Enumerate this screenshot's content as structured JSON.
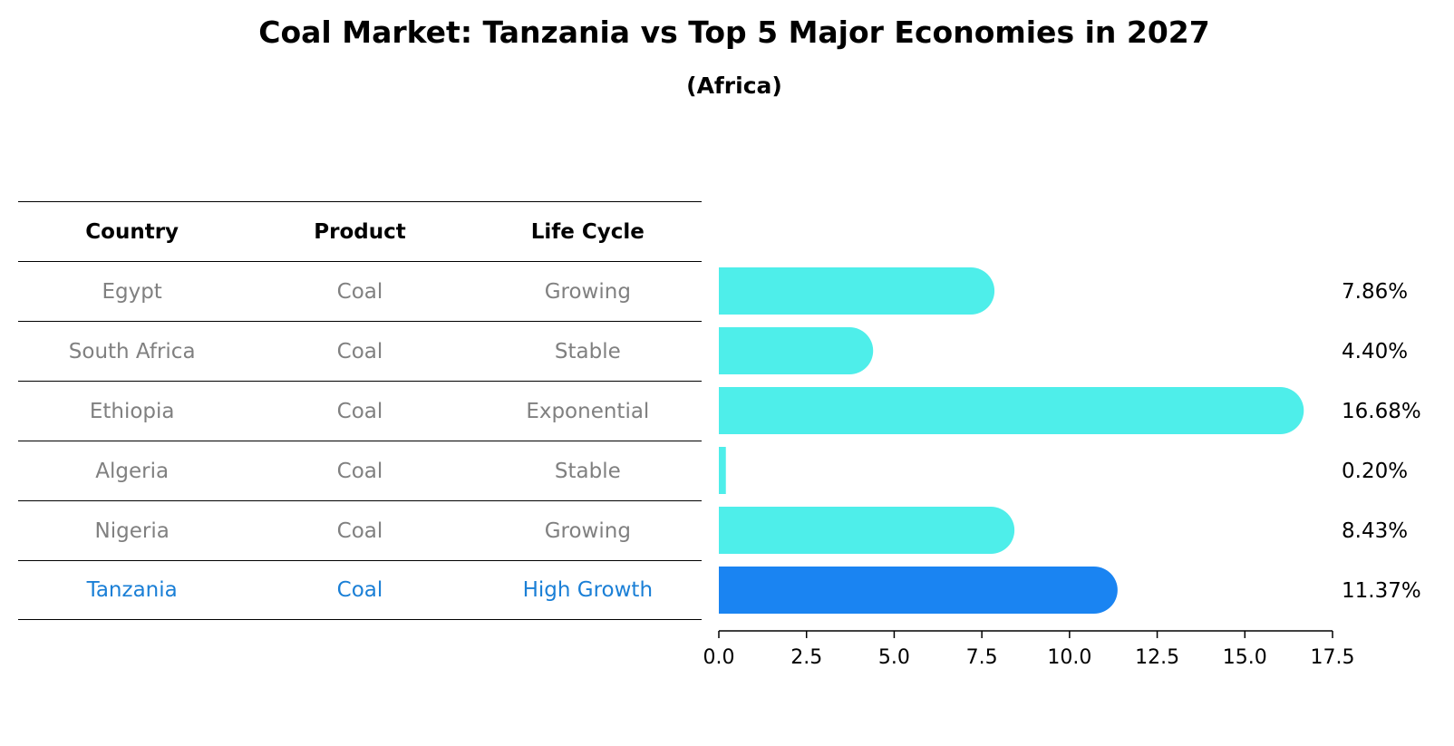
{
  "chart_data": {
    "type": "bar",
    "orientation": "horizontal",
    "title": "Coal Market: Tanzania vs Top 5 Major Economies in 2027",
    "subtitle": "(Africa)",
    "xlim": [
      0,
      17.5
    ],
    "xticks": [
      "0.0",
      "2.5",
      "5.0",
      "7.5",
      "10.0",
      "12.5",
      "15.0",
      "17.5"
    ],
    "categories": [
      "Egypt",
      "South Africa",
      "Ethiopia",
      "Algeria",
      "Nigeria",
      "Tanzania"
    ],
    "values": [
      7.86,
      4.4,
      16.68,
      0.2,
      8.43,
      11.37
    ],
    "value_labels": [
      "7.86%",
      "4.40%",
      "16.68%",
      "0.20%",
      "8.43%",
      "11.37%"
    ],
    "highlight": "Tanzania",
    "colors": {
      "bar": "#4eeeea",
      "highlight_bar": "#1a84f2",
      "highlight_text": "#1a7fd6",
      "row_text": "#808080"
    }
  },
  "table": {
    "headers": [
      "Country",
      "Product",
      "Life Cycle"
    ],
    "rows": [
      [
        "Egypt",
        "Coal",
        "Growing"
      ],
      [
        "South Africa",
        "Coal",
        "Stable"
      ],
      [
        "Ethiopia",
        "Coal",
        "Exponential"
      ],
      [
        "Algeria",
        "Coal",
        "Stable"
      ],
      [
        "Nigeria",
        "Coal",
        "Growing"
      ],
      [
        "Tanzania",
        "Coal",
        "High Growth"
      ]
    ]
  }
}
